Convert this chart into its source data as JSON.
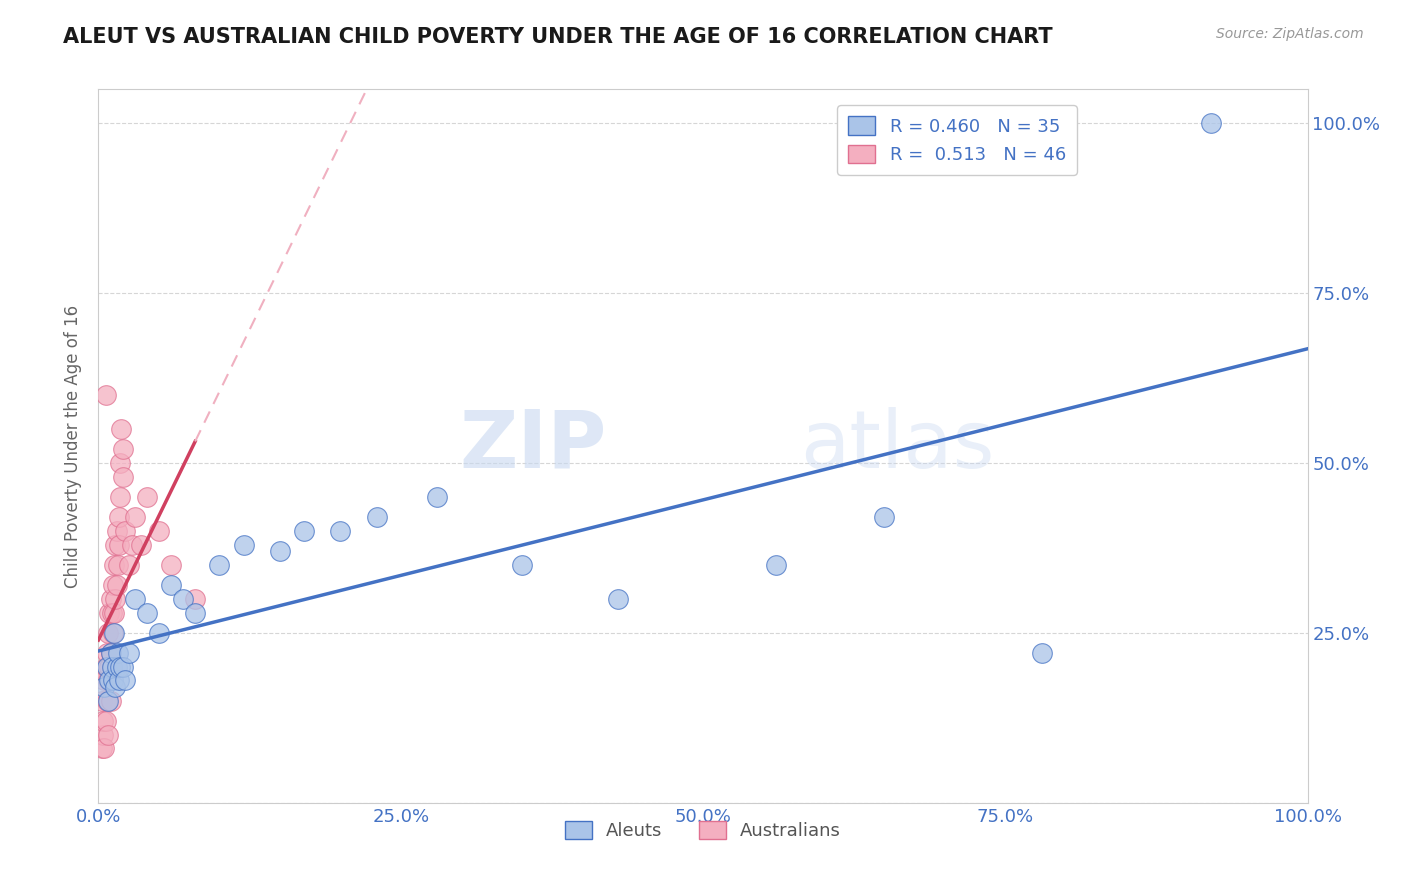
{
  "title": "ALEUT VS AUSTRALIAN CHILD POVERTY UNDER THE AGE OF 16 CORRELATION CHART",
  "source": "Source: ZipAtlas.com",
  "ylabel": "Child Poverty Under the Age of 16",
  "watermark_zip": "ZIP",
  "watermark_atlas": "atlas",
  "aleuts_R": 0.46,
  "aleuts_N": 35,
  "australians_R": 0.513,
  "australians_N": 46,
  "aleuts_color": "#aac4e8",
  "australians_color": "#f4afc0",
  "aleuts_edge_color": "#4472c4",
  "australians_edge_color": "#e07090",
  "aleuts_line_color": "#4472c4",
  "australians_line_solid_color": "#d04060",
  "australians_line_dash_color": "#f0b0c0",
  "aleuts_x": [
    0.005,
    0.007,
    0.008,
    0.009,
    0.01,
    0.011,
    0.012,
    0.013,
    0.014,
    0.015,
    0.016,
    0.017,
    0.018,
    0.02,
    0.022,
    0.025,
    0.03,
    0.04,
    0.05,
    0.06,
    0.07,
    0.08,
    0.1,
    0.12,
    0.15,
    0.17,
    0.2,
    0.23,
    0.28,
    0.35,
    0.43,
    0.56,
    0.65,
    0.78,
    0.92
  ],
  "aleuts_y": [
    0.17,
    0.2,
    0.15,
    0.18,
    0.22,
    0.2,
    0.18,
    0.25,
    0.17,
    0.2,
    0.22,
    0.18,
    0.2,
    0.2,
    0.18,
    0.22,
    0.3,
    0.28,
    0.25,
    0.32,
    0.3,
    0.28,
    0.35,
    0.38,
    0.37,
    0.4,
    0.4,
    0.42,
    0.45,
    0.35,
    0.3,
    0.35,
    0.42,
    0.22,
    1.0
  ],
  "australians_x": [
    0.003,
    0.003,
    0.004,
    0.004,
    0.005,
    0.005,
    0.006,
    0.006,
    0.006,
    0.007,
    0.007,
    0.008,
    0.008,
    0.008,
    0.009,
    0.009,
    0.01,
    0.01,
    0.01,
    0.011,
    0.011,
    0.012,
    0.012,
    0.013,
    0.013,
    0.014,
    0.014,
    0.015,
    0.015,
    0.016,
    0.017,
    0.017,
    0.018,
    0.018,
    0.019,
    0.02,
    0.02,
    0.022,
    0.025,
    0.028,
    0.03,
    0.035,
    0.04,
    0.05,
    0.06,
    0.08
  ],
  "australians_y": [
    0.08,
    0.15,
    0.1,
    0.12,
    0.08,
    0.18,
    0.6,
    0.12,
    0.2,
    0.15,
    0.22,
    0.1,
    0.18,
    0.25,
    0.2,
    0.28,
    0.15,
    0.22,
    0.3,
    0.2,
    0.28,
    0.25,
    0.32,
    0.28,
    0.35,
    0.3,
    0.38,
    0.32,
    0.4,
    0.35,
    0.42,
    0.38,
    0.45,
    0.5,
    0.55,
    0.48,
    0.52,
    0.4,
    0.35,
    0.38,
    0.42,
    0.38,
    0.45,
    0.4,
    0.35,
    0.3
  ],
  "xlim": [
    0.0,
    1.0
  ],
  "ylim": [
    0.0,
    1.05
  ],
  "xticks": [
    0.0,
    0.25,
    0.5,
    0.75,
    1.0
  ],
  "xtick_labels": [
    "0.0%",
    "25.0%",
    "50.0%",
    "75.0%",
    "100.0%"
  ],
  "yticks": [
    0.0,
    0.25,
    0.5,
    0.75,
    1.0
  ],
  "right_ytick_labels": [
    "",
    "25.0%",
    "50.0%",
    "75.0%",
    "100.0%"
  ],
  "background_color": "#ffffff",
  "grid_color": "#cccccc",
  "tick_color": "#4472c4"
}
